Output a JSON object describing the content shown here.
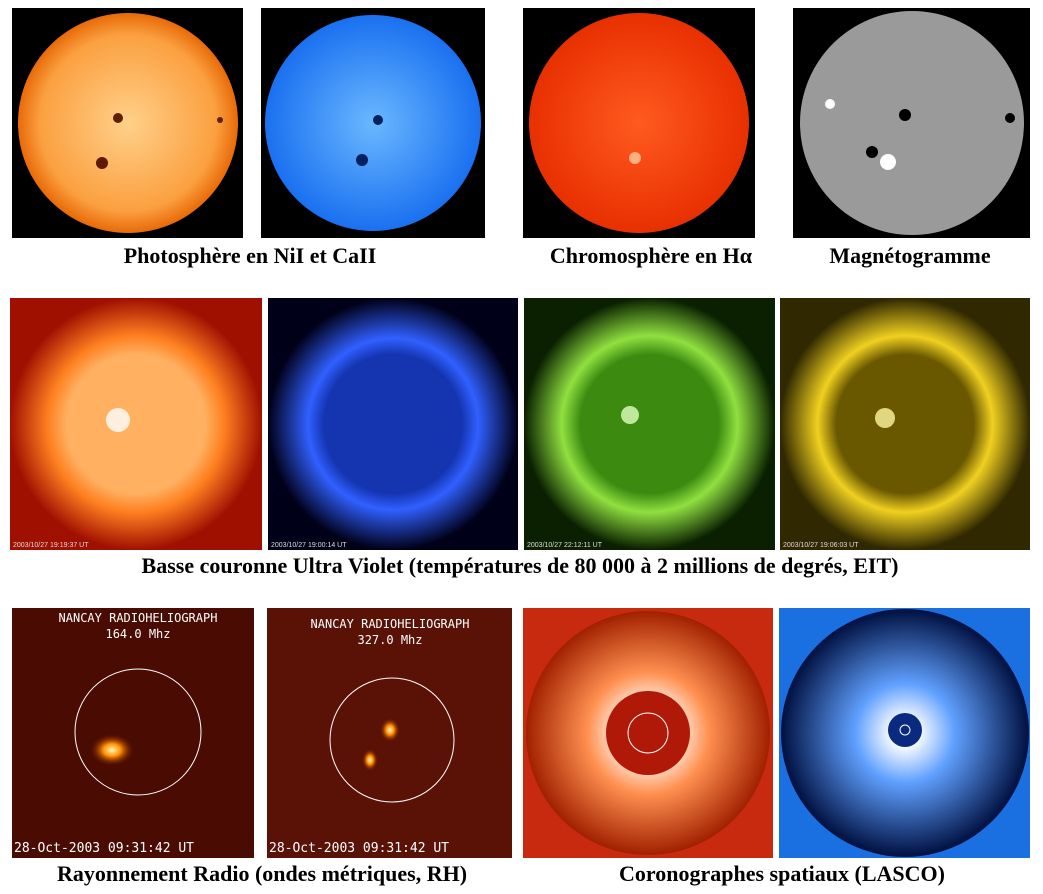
{
  "captions": {
    "row1": [
      "Photosphère en NiI et CaII",
      "Chromosphère en Hα",
      "Magnétogramme"
    ],
    "row2": "Basse couronne Ultra Violet (températures de 80 000 à 2 millions de degrés, EIT)",
    "row3": [
      "Rayonnement Radio (ondes métriques, RH)",
      "Coronographes spatiaux (LASCO)"
    ]
  },
  "eit_timestamps": [
    "2003/10/27 19:19:37 UT",
    "2003/10/27 19:00:14 UT",
    "2003/10/27 22:12:11 UT",
    "2003/10/27 19:06:03 UT"
  ],
  "radio": [
    {
      "title": "NANCAY RADIOHELIOGRAPH",
      "frequency": "164.0 Mhz",
      "timestamp": "28-Oct-2003 09:31:42 UT"
    },
    {
      "title": "NANCAY RADIOHELIOGRAPH",
      "frequency": "327.0 Mhz",
      "timestamp": "28-Oct-2003 09:31:42 UT"
    }
  ]
}
